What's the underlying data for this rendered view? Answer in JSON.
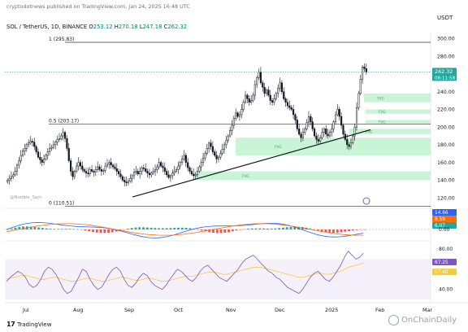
{
  "header": {
    "published": "cryptodotnews published on TradingView.com, Jan 24, 2025 16:48 UTC",
    "currency": "USDT",
    "symbol": "SOL / TetherUS, 1D, BINANCE",
    "ohlc": [
      {
        "label": "O",
        "value": "253.12"
      },
      {
        "label": "H",
        "value": "270.18"
      },
      {
        "label": "L",
        "value": "247.18"
      },
      {
        "label": "C",
        "value": "262.32"
      }
    ]
  },
  "footer": {
    "logo_text": "TradingView",
    "watermark": "OnChainDaily"
  },
  "colors": {
    "up": "#26a69a",
    "down": "#ef5350",
    "candle": "#131722",
    "fvg_fill": "#b8f0c8",
    "macd_line": "#2962ff",
    "signal_line": "#ff6d00",
    "rsi_line": "#7e57c2",
    "rsi_ma": "#f7c843",
    "price_tag": "#26a69a"
  },
  "chart_data": [
    {
      "type": "line",
      "name": "price",
      "x_labels": [
        "Jul",
        "Aug",
        "Sep",
        "Oct",
        "Nov",
        "Dec",
        "2025",
        "Feb",
        "Mar"
      ],
      "y_ticks": [
        120,
        140,
        160,
        180,
        200,
        220,
        240,
        260,
        280,
        300
      ],
      "ylim": [
        110,
        305
      ],
      "close": [
        140,
        142,
        144,
        146,
        150,
        157,
        162,
        168,
        173,
        176,
        180,
        182,
        184,
        183,
        178,
        172,
        166,
        163,
        160,
        164,
        168,
        172,
        176,
        177,
        180,
        183,
        186,
        187,
        190,
        194,
        187,
        176,
        162,
        150,
        144,
        150,
        156,
        160,
        156,
        152,
        150,
        148,
        147,
        152,
        150,
        149,
        152,
        155,
        152,
        150,
        151,
        156,
        158,
        160,
        157,
        155,
        153,
        150,
        147,
        144,
        140,
        138,
        137,
        139,
        142,
        145,
        149,
        150,
        147,
        150,
        154,
        153,
        150,
        148,
        146,
        148,
        150,
        152,
        155,
        160,
        156,
        154,
        150,
        146,
        143,
        145,
        148,
        150,
        152,
        156,
        160,
        164,
        168,
        160,
        154,
        150,
        147,
        145,
        146,
        150,
        155,
        160,
        165,
        170,
        176,
        182,
        178,
        172,
        168,
        164,
        166,
        170,
        175,
        180,
        185,
        190,
        196,
        202,
        210,
        216,
        212,
        214,
        220,
        228,
        236,
        232,
        228,
        230,
        236,
        248,
        256,
        262,
        250,
        245,
        238,
        242,
        236,
        230,
        228,
        232,
        238,
        244,
        250,
        240,
        232,
        228,
        224,
        222,
        220,
        214,
        208,
        198,
        192,
        188,
        194,
        198,
        205,
        212,
        206,
        198,
        190,
        186,
        184,
        188,
        194,
        198,
        192,
        190,
        194,
        198,
        206,
        214,
        220,
        212,
        202,
        192,
        186,
        180,
        178,
        182,
        190,
        200,
        222,
        238,
        254,
        268,
        266,
        262
      ],
      "fib_levels": [
        {
          "label": "1 (295.83)",
          "value": 295.83
        },
        {
          "label": "0.5 (203.17)",
          "value": 203.17
        },
        {
          "label": "0 (110.51)",
          "value": 110.51
        }
      ],
      "fvg_zones": [
        {
          "label": "FVG",
          "low": 228,
          "high": 238
        },
        {
          "label": "FVG",
          "low": 215,
          "high": 220
        },
        {
          "label": "FVG",
          "low": 204,
          "high": 208
        },
        {
          "label": "FVG",
          "low": 192,
          "high": 198
        },
        {
          "label": "FVG",
          "low": 168,
          "high": 188
        },
        {
          "label": "FVG",
          "low": 140,
          "high": 150
        }
      ],
      "last_price": "262.32",
      "countdown": "08:11:58",
      "source_label": "@Noobie_Sam"
    },
    {
      "type": "line",
      "name": "macd",
      "y_ticks": [
        0.0
      ],
      "values_labels": [
        "14.66",
        "8.59",
        "6.07"
      ]
    },
    {
      "type": "line",
      "name": "rsi",
      "y_ticks": [
        40.0,
        80.0
      ],
      "ylim": [
        30,
        85
      ],
      "values_labels": [
        "67.25",
        "57.40"
      ],
      "rsi": [
        48,
        52,
        55,
        58,
        56,
        52,
        45,
        42,
        44,
        50,
        58,
        62,
        60,
        55,
        48,
        40,
        36,
        38,
        45,
        52,
        60,
        58,
        50,
        44,
        40,
        42,
        48,
        55,
        60,
        62,
        58,
        50,
        44,
        42,
        46,
        52,
        56,
        54,
        48,
        44,
        42,
        40,
        44,
        50,
        55,
        60,
        58,
        54,
        50,
        48,
        52,
        58,
        62,
        64,
        60,
        56,
        52,
        50,
        48,
        52,
        56,
        60,
        66,
        70,
        72,
        74,
        70,
        66,
        62,
        58,
        56,
        52,
        50,
        46,
        42,
        40,
        38,
        36,
        40,
        46,
        52,
        56,
        58,
        54,
        50,
        48,
        52,
        58,
        64,
        72,
        78,
        74,
        70,
        72,
        76
      ],
      "rsi_ma": [
        50,
        51,
        52,
        53,
        54,
        54,
        53,
        52,
        51,
        50,
        50,
        51,
        52,
        52,
        51,
        50,
        49,
        48,
        48,
        49,
        50,
        51,
        51,
        50,
        49,
        48,
        48,
        49,
        50,
        51,
        52,
        52,
        51,
        50,
        49,
        49,
        50,
        51,
        51,
        50,
        49,
        48,
        48,
        49,
        50,
        51,
        52,
        53,
        53,
        53,
        54,
        55,
        56,
        57,
        57,
        57,
        56,
        55,
        55,
        56,
        57,
        58,
        59,
        60,
        61,
        62,
        62,
        62,
        61,
        60,
        59,
        58,
        57,
        56,
        55,
        54,
        53,
        52,
        52,
        53,
        54,
        55,
        56,
        56,
        55,
        55,
        56,
        57,
        58,
        60,
        62,
        63,
        64,
        65,
        66
      ]
    }
  ]
}
